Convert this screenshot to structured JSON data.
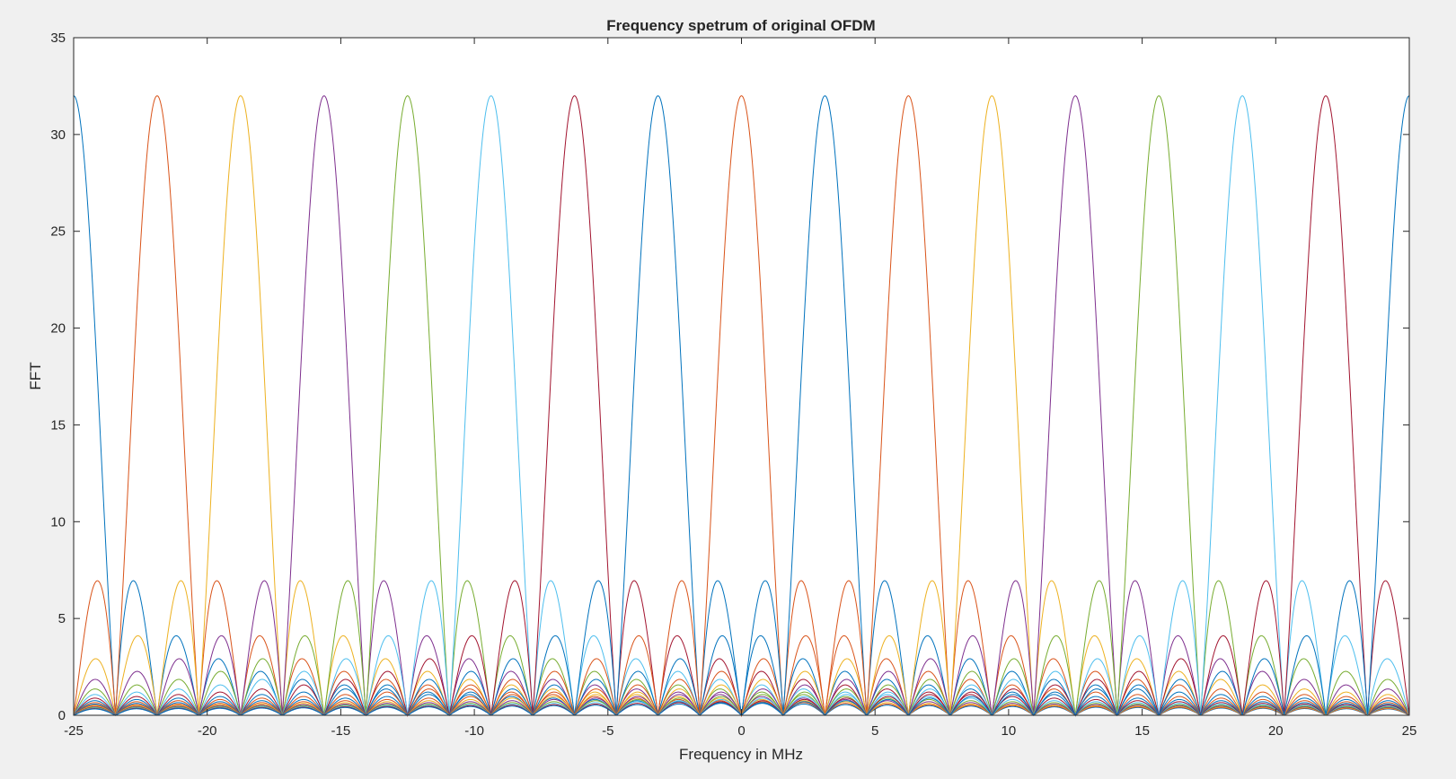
{
  "figure_background": "#f0f0f0",
  "chart_data": {
    "type": "line",
    "title": "Frequency spetrum of original OFDM",
    "xlabel": "Frequency in MHz",
    "ylabel": "FFT",
    "xlim": [
      -25,
      25
    ],
    "ylim": [
      0,
      35
    ],
    "xticks": [
      -25,
      -20,
      -15,
      -10,
      -5,
      0,
      5,
      10,
      15,
      20,
      25
    ],
    "yticks": [
      0,
      5,
      10,
      15,
      20,
      25,
      30,
      35
    ],
    "grid": false,
    "legend": "none",
    "subcarrier_centers": [
      -25,
      -21.875,
      -18.75,
      -15.625,
      -12.5,
      -9.375,
      -6.25,
      -3.125,
      0,
      3.125,
      6.25,
      9.375,
      12.5,
      15.625,
      18.75,
      21.875,
      25
    ],
    "subcarrier_peak": 32,
    "null_spacing": 1.5625,
    "series_colors": [
      "#0072BD",
      "#D95319",
      "#EDB120",
      "#7E2F8E",
      "#77AC30",
      "#4DBEEE",
      "#A2142F",
      "#0072BD",
      "#D95319",
      "#0072BD",
      "#D95319",
      "#EDB120",
      "#7E2F8E",
      "#77AC30",
      "#4DBEEE",
      "#A2142F",
      "#0072BD"
    ]
  }
}
